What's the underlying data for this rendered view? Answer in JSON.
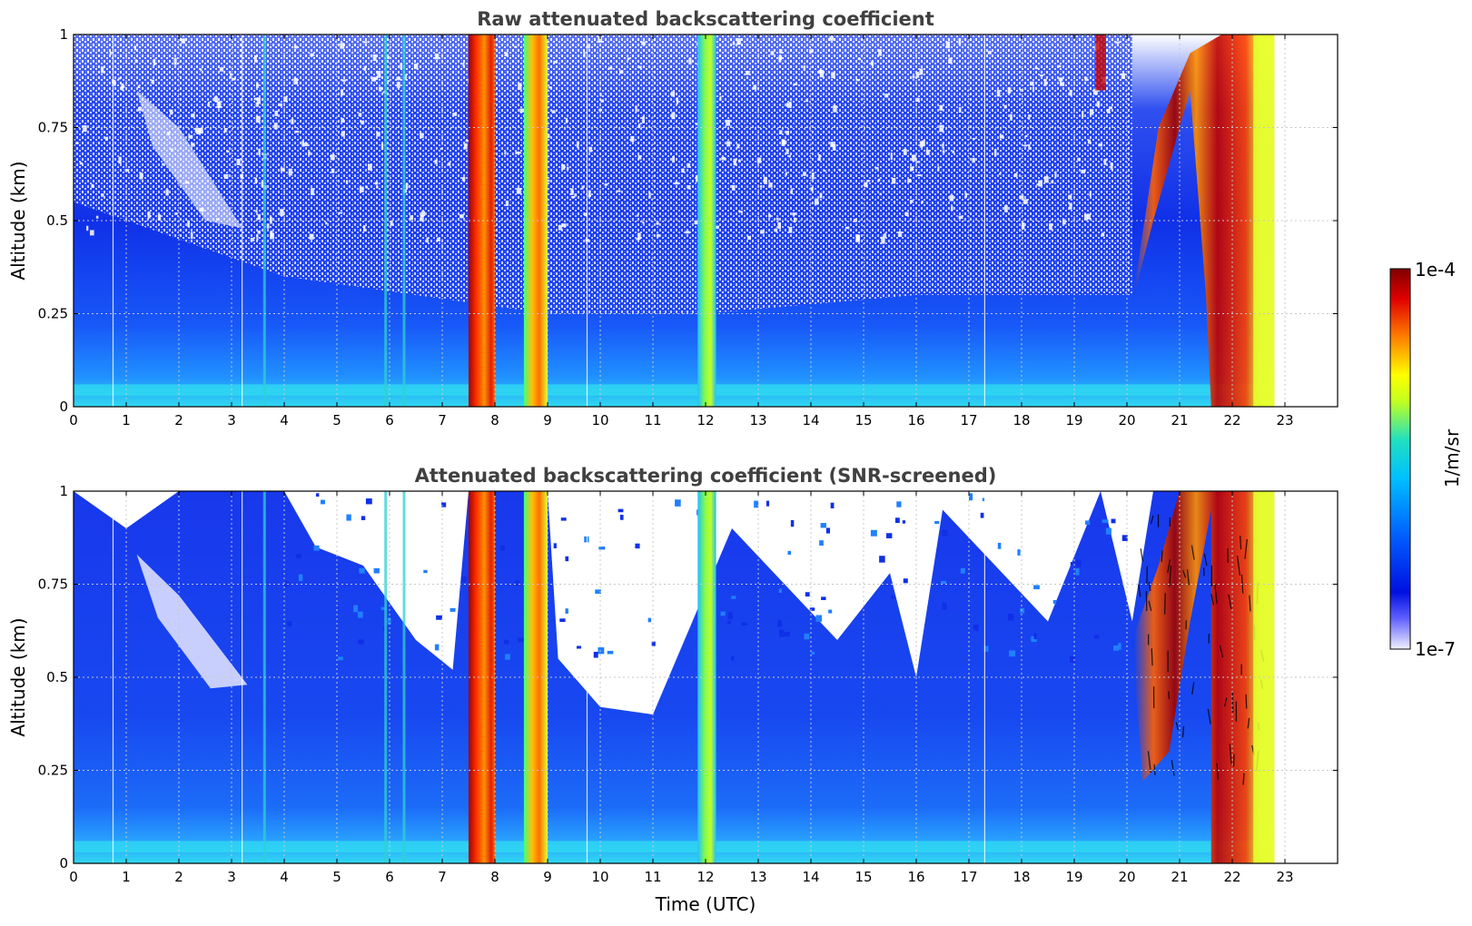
{
  "chart_data": [
    {
      "type": "heatmap",
      "title": "Raw attenuated backscattering coefficient",
      "ylabel": "Altitude (km)",
      "xlabel": "",
      "xlim": [
        0,
        24
      ],
      "ylim": [
        0,
        1
      ],
      "x_ticks": [
        "0",
        "1",
        "2",
        "3",
        "4",
        "5",
        "6",
        "7",
        "8",
        "9",
        "10",
        "11",
        "12",
        "13",
        "14",
        "15",
        "16",
        "17",
        "18",
        "19",
        "20",
        "21",
        "22",
        "23"
      ],
      "y_ticks": [
        "0",
        "0.25",
        "0.5",
        "0.75",
        "1"
      ],
      "grid": true,
      "data_end_time": 22.8,
      "features": [
        {
          "x": [
            7.5,
            8.0
          ],
          "level": "high"
        },
        {
          "x": [
            8.5,
            9.0
          ],
          "level": "high"
        },
        {
          "x": [
            11.8,
            12.2
          ],
          "level": "moderate"
        },
        {
          "x": [
            20.1,
            22.8
          ],
          "level": "high"
        }
      ]
    },
    {
      "type": "heatmap",
      "title": "Attenuated backscattering coefficient (SNR-screened)",
      "ylabel": "Altitude (km)",
      "xlabel": "Time (UTC)",
      "xlim": [
        0,
        24
      ],
      "ylim": [
        0,
        1
      ],
      "x_ticks": [
        "0",
        "1",
        "2",
        "3",
        "4",
        "5",
        "6",
        "7",
        "8",
        "9",
        "10",
        "11",
        "12",
        "13",
        "14",
        "15",
        "16",
        "17",
        "18",
        "19",
        "20",
        "21",
        "22",
        "23"
      ],
      "y_ticks": [
        "0",
        "0.25",
        "0.5",
        "0.75",
        "1"
      ],
      "grid": true,
      "data_end_time": 22.8,
      "screened_top_km": [
        [
          0,
          1.0
        ],
        [
          1,
          0.9
        ],
        [
          2,
          1.0
        ],
        [
          3,
          1.0
        ],
        [
          4,
          1.0
        ],
        [
          4.6,
          0.85
        ],
        [
          5.5,
          0.8
        ],
        [
          6.5,
          0.6
        ],
        [
          7.2,
          0.52
        ],
        [
          7.5,
          1.0
        ],
        [
          9.0,
          1.0
        ],
        [
          9.2,
          0.55
        ],
        [
          10.0,
          0.42
        ],
        [
          11.0,
          0.4
        ],
        [
          11.6,
          0.6
        ],
        [
          12.5,
          0.9
        ],
        [
          13.5,
          0.75
        ],
        [
          14.5,
          0.6
        ],
        [
          15.5,
          0.78
        ],
        [
          16.0,
          0.5
        ],
        [
          16.5,
          0.95
        ],
        [
          17.5,
          0.8
        ],
        [
          18.5,
          0.65
        ],
        [
          19.5,
          1.0
        ],
        [
          20.1,
          0.65
        ],
        [
          20.5,
          1.0
        ],
        [
          22.8,
          1.0
        ]
      ]
    }
  ],
  "colorbar": {
    "label": "1/m/sr",
    "min_label": "1e-7",
    "max_label": "1e-4",
    "scale": "log",
    "colormap": [
      "#f0f0ff",
      "#0010e0",
      "#0060ff",
      "#00c0ff",
      "#20e0c0",
      "#c0ff20",
      "#ffff00",
      "#ff8000",
      "#e00000",
      "#800000"
    ]
  },
  "colors": {
    "weak": "#1030e8",
    "mid": "#1e78ff",
    "surface": "#30d8f0",
    "strong": "#d01000",
    "yellow": "#e8ff30"
  }
}
